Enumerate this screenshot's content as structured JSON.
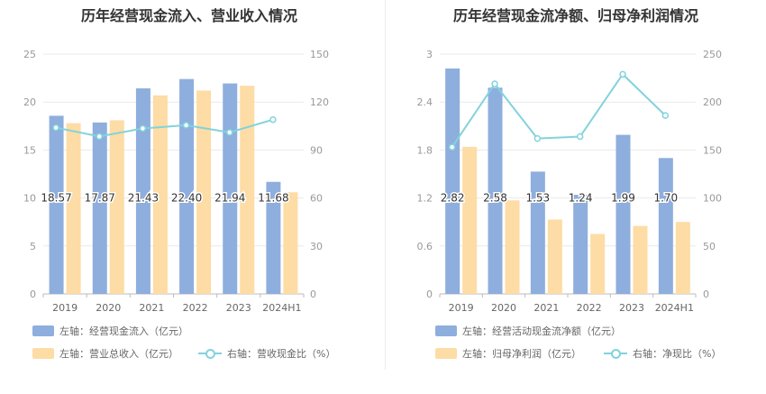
{
  "colors": {
    "blue": "#8eaedd",
    "orange": "#fddca5",
    "teal": "#82d3dc",
    "grid": "#e9e9e9",
    "axis": "#999999"
  },
  "chart_data": [
    {
      "type": "bar+line",
      "title": "历年经营现金流入、营业收入情况",
      "categories": [
        "2019",
        "2020",
        "2021",
        "2022",
        "2023",
        "2024H1"
      ],
      "left_axis": {
        "ticks": [
          "0",
          "5",
          "10",
          "15",
          "20",
          "25"
        ],
        "ylim": [
          0,
          25
        ]
      },
      "right_axis": {
        "ticks": [
          "0",
          "30",
          "60",
          "90",
          "120",
          "150"
        ],
        "ylim": [
          0,
          150
        ]
      },
      "series": [
        {
          "name": "左轴：经营现金流入（亿元）",
          "type": "bar",
          "axis": "left",
          "values": [
            18.57,
            17.87,
            21.43,
            22.4,
            21.94,
            11.68
          ],
          "labels": [
            "18.57",
            "17.87",
            "21.43",
            "22.40",
            "21.94",
            "11.68"
          ]
        },
        {
          "name": "左轴：营业总收入（亿元）",
          "type": "bar",
          "axis": "left",
          "values": [
            17.8,
            18.1,
            20.7,
            21.2,
            21.7,
            10.6
          ]
        },
        {
          "name": "右轴：营收现金比（%）",
          "type": "line",
          "axis": "right",
          "values": [
            104,
            98.5,
            103.5,
            105.5,
            101,
            109
          ]
        }
      ]
    },
    {
      "type": "bar+line",
      "title": "历年经营现金流净额、归母净利润情况",
      "categories": [
        "2019",
        "2020",
        "2021",
        "2022",
        "2023",
        "2024H1"
      ],
      "left_axis": {
        "ticks": [
          "0",
          "0.6",
          "1.2",
          "1.8",
          "2.4",
          "3"
        ],
        "ylim": [
          0,
          3
        ]
      },
      "right_axis": {
        "ticks": [
          "0",
          "50",
          "100",
          "150",
          "200",
          "250"
        ],
        "ylim": [
          0,
          250
        ]
      },
      "series": [
        {
          "name": "左轴：经营活动现金流净额（亿元）",
          "type": "bar",
          "axis": "left",
          "values": [
            2.82,
            2.58,
            1.53,
            1.24,
            1.99,
            1.7
          ],
          "labels": [
            "2.82",
            "2.58",
            "1.53",
            "1.24",
            "1.99",
            "1.70"
          ]
        },
        {
          "name": "左轴：归母净利润（亿元）",
          "type": "bar",
          "axis": "left",
          "values": [
            1.84,
            1.17,
            0.93,
            0.75,
            0.85,
            0.9
          ]
        },
        {
          "name": "右轴：净现比（%）",
          "type": "line",
          "axis": "right",
          "values": [
            153,
            219,
            162,
            164,
            229,
            186
          ]
        }
      ]
    }
  ]
}
